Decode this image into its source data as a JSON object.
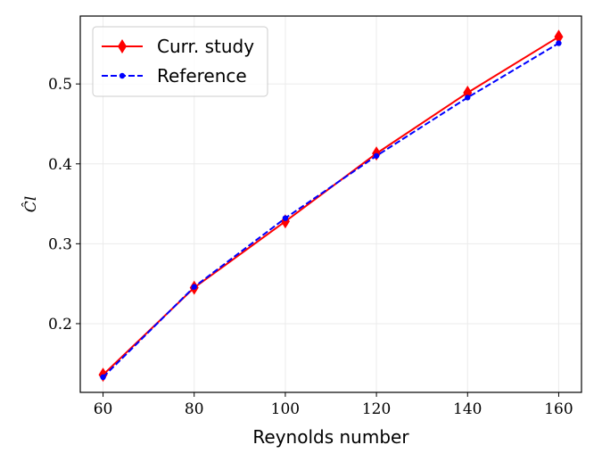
{
  "chart_data": {
    "type": "line",
    "x_label": "Reynolds number",
    "y_label": "Ĉl",
    "x": [
      60,
      80,
      100,
      120,
      140,
      160
    ],
    "series": [
      {
        "name": "Curr. study",
        "color": "#ff0000",
        "marker": "diamond",
        "dash": "solid",
        "values": [
          0.136,
          0.245,
          0.328,
          0.413,
          0.489,
          0.559
        ]
      },
      {
        "name": "Reference",
        "color": "#0000ff",
        "marker": "circle",
        "dash": "dashed",
        "values": [
          0.133,
          0.246,
          0.332,
          0.41,
          0.483,
          0.551
        ]
      }
    ],
    "xlim": [
      55,
      165
    ],
    "ylim": [
      0.114,
      0.585
    ],
    "xticks": [
      60,
      80,
      100,
      120,
      140,
      160
    ],
    "yticks": [
      0.2,
      0.3,
      0.4,
      0.5
    ],
    "grid": true,
    "legend": "upper left"
  }
}
